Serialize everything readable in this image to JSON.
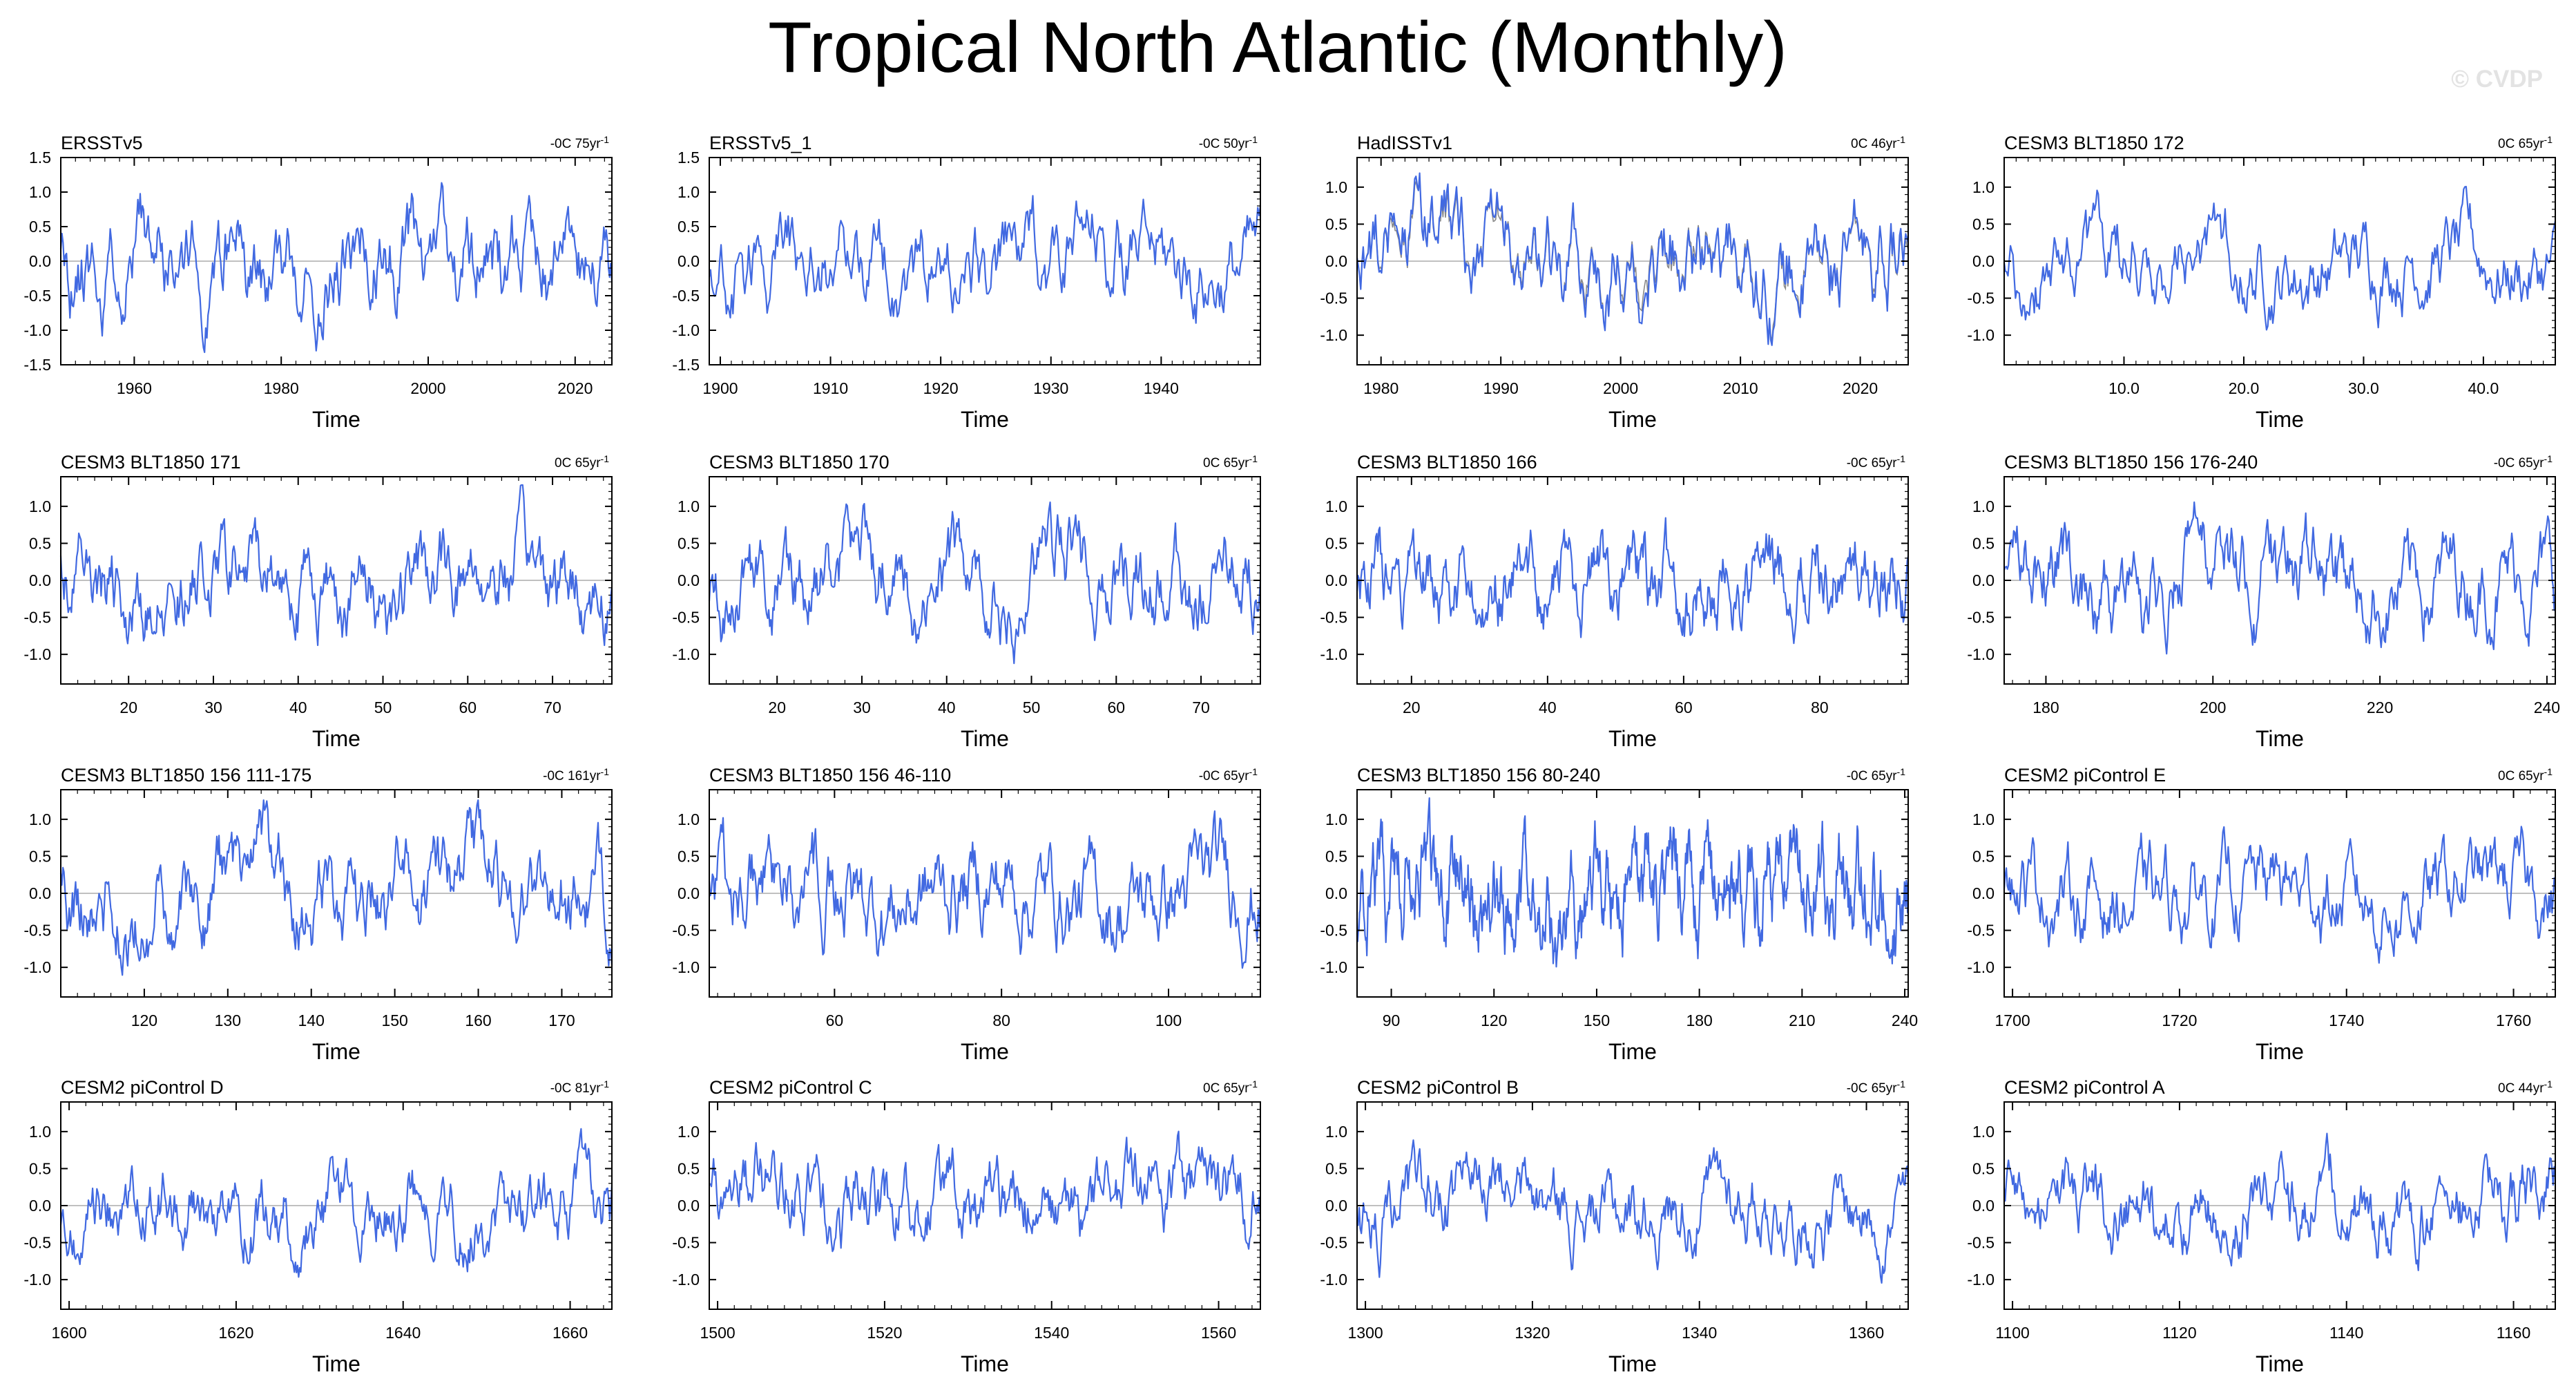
{
  "title": "Tropical North Atlantic (Monthly)",
  "watermark": "© CVDP",
  "colors": {
    "series": "#4169e1",
    "secondary": "#888888",
    "axis": "#000000",
    "zero_line": "#9a9a9a"
  },
  "chart_data": [
    {
      "type": "line",
      "title": "ERSSTv5",
      "trend": "-0C 75yr",
      "xlabel": "Time",
      "x_range": [
        1950,
        2025
      ],
      "x_ticks": [
        1960,
        1980,
        2000,
        2020
      ],
      "x_tick_labels": [
        "1960",
        "1980",
        "2000",
        "2020"
      ],
      "y_range": [
        -1.5,
        1.5
      ],
      "y_ticks": [
        -1.5,
        -1.0,
        -0.5,
        0.0,
        0.5,
        1.0,
        1.5
      ],
      "y_tick_labels": [
        "-1.5",
        "-1.0",
        "-0.5",
        "0.0",
        "0.5",
        "1.0",
        "1.5"
      ],
      "amplitude": 0.42,
      "seed": 11,
      "npts": 480
    },
    {
      "type": "line",
      "title": "ERSSTv5_1",
      "trend": "-0C 50yr",
      "xlabel": "Time",
      "x_range": [
        1899,
        1949
      ],
      "x_ticks": [
        1900,
        1910,
        1920,
        1930,
        1940
      ],
      "x_tick_labels": [
        "1900",
        "1910",
        "1920",
        "1930",
        "1940"
      ],
      "y_range": [
        -1.5,
        1.5
      ],
      "y_ticks": [
        -1.5,
        -1.0,
        -0.5,
        0.0,
        0.5,
        1.0,
        1.5
      ],
      "y_tick_labels": [
        "-1.5",
        "-1.0",
        "-0.5",
        "0.0",
        "0.5",
        "1.0",
        "1.5"
      ],
      "amplitude": 0.4,
      "seed": 23,
      "npts": 420
    },
    {
      "type": "line",
      "title": "HadISSTv1",
      "trend": "0C 46yr",
      "xlabel": "Time",
      "x_range": [
        1978,
        2024
      ],
      "x_ticks": [
        1980,
        1990,
        2000,
        2010,
        2020
      ],
      "x_tick_labels": [
        "1980",
        "1990",
        "2000",
        "2010",
        "2020"
      ],
      "y_range": [
        -1.4,
        1.4
      ],
      "y_ticks": [
        -1.0,
        -0.5,
        0.0,
        0.5,
        1.0
      ],
      "y_tick_labels": [
        "-1.0",
        "-0.5",
        "0.0",
        "0.5",
        "1.0"
      ],
      "amplitude": 0.4,
      "seed": 37,
      "npts": 450,
      "secondary_series": true
    },
    {
      "type": "line",
      "title": "CESM3 BLT1850 172",
      "trend": "0C 65yr",
      "xlabel": "Time",
      "x_range": [
        0,
        46
      ],
      "x_ticks": [
        10,
        20,
        30,
        40
      ],
      "x_tick_labels": [
        "10.0",
        "20.0",
        "30.0",
        "40.0"
      ],
      "y_range": [
        -1.4,
        1.4
      ],
      "y_ticks": [
        -1.0,
        -0.5,
        0.0,
        0.5,
        1.0
      ],
      "y_tick_labels": [
        "-1.0",
        "-0.5",
        "0.0",
        "0.5",
        "1.0"
      ],
      "amplitude": 0.33,
      "seed": 41,
      "npts": 440
    },
    {
      "type": "line",
      "title": "CESM3 BLT1850 171",
      "trend": "0C 65yr",
      "xlabel": "Time",
      "x_range": [
        12,
        77
      ],
      "x_ticks": [
        20,
        30,
        40,
        50,
        60,
        70
      ],
      "x_tick_labels": [
        "20",
        "30",
        "40",
        "50",
        "60",
        "70"
      ],
      "y_range": [
        -1.4,
        1.4
      ],
      "y_ticks": [
        -1.0,
        -0.5,
        0.0,
        0.5,
        1.0
      ],
      "y_tick_labels": [
        "-1.0",
        "-0.5",
        "0.0",
        "0.5",
        "1.0"
      ],
      "amplitude": 0.35,
      "seed": 53,
      "npts": 520
    },
    {
      "type": "line",
      "title": "CESM3 BLT1850 170",
      "trend": "0C 65yr",
      "xlabel": "Time",
      "x_range": [
        12,
        77
      ],
      "x_ticks": [
        20,
        30,
        40,
        50,
        60,
        70
      ],
      "x_tick_labels": [
        "20",
        "30",
        "40",
        "50",
        "60",
        "70"
      ],
      "y_range": [
        -1.4,
        1.4
      ],
      "y_ticks": [
        -1.0,
        -0.5,
        0.0,
        0.5,
        1.0
      ],
      "y_tick_labels": [
        "-1.0",
        "-0.5",
        "0.0",
        "0.5",
        "1.0"
      ],
      "amplitude": 0.36,
      "seed": 67,
      "npts": 520
    },
    {
      "type": "line",
      "title": "CESM3 BLT1850 166",
      "trend": "-0C 65yr",
      "xlabel": "Time",
      "x_range": [
        12,
        93
      ],
      "x_ticks": [
        20,
        40,
        60,
        80
      ],
      "x_tick_labels": [
        "20",
        "40",
        "60",
        "80"
      ],
      "y_range": [
        -1.4,
        1.4
      ],
      "y_ticks": [
        -1.0,
        -0.5,
        0.0,
        0.5,
        1.0
      ],
      "y_tick_labels": [
        "-1.0",
        "-0.5",
        "0.0",
        "0.5",
        "1.0"
      ],
      "amplitude": 0.36,
      "seed": 71,
      "npts": 560
    },
    {
      "type": "line",
      "title": "CESM3 BLT1850 156 176-240",
      "trend": "-0C 65yr",
      "xlabel": "Time",
      "x_range": [
        175,
        241
      ],
      "x_ticks": [
        180,
        200,
        220,
        240
      ],
      "x_tick_labels": [
        "180",
        "200",
        "220",
        "240"
      ],
      "y_range": [
        -1.4,
        1.4
      ],
      "y_ticks": [
        -1.0,
        -0.5,
        0.0,
        0.5,
        1.0
      ],
      "y_tick_labels": [
        "-1.0",
        "-0.5",
        "0.0",
        "0.5",
        "1.0"
      ],
      "amplitude": 0.36,
      "seed": 83,
      "npts": 520
    },
    {
      "type": "line",
      "title": "CESM3 BLT1850 156 111-175",
      "trend": "-0C 161yr",
      "xlabel": "Time",
      "x_range": [
        110,
        176
      ],
      "x_ticks": [
        120,
        130,
        140,
        150,
        160,
        170
      ],
      "x_tick_labels": [
        "120",
        "130",
        "140",
        "150",
        "160",
        "170"
      ],
      "y_range": [
        -1.4,
        1.4
      ],
      "y_ticks": [
        -1.0,
        -0.5,
        0.0,
        0.5,
        1.0
      ],
      "y_tick_labels": [
        "-1.0",
        "-0.5",
        "0.0",
        "0.5",
        "1.0"
      ],
      "amplitude": 0.36,
      "seed": 97,
      "npts": 520
    },
    {
      "type": "line",
      "title": "CESM3 BLT1850 156 46-110",
      "trend": "-0C 65yr",
      "xlabel": "Time",
      "x_range": [
        45,
        111
      ],
      "x_ticks": [
        60,
        80,
        100
      ],
      "x_tick_labels": [
        "60",
        "80",
        "100"
      ],
      "y_range": [
        -1.4,
        1.4
      ],
      "y_ticks": [
        -1.0,
        -0.5,
        0.0,
        0.5,
        1.0
      ],
      "y_tick_labels": [
        "-1.0",
        "-0.5",
        "0.0",
        "0.5",
        "1.0"
      ],
      "amplitude": 0.38,
      "seed": 101,
      "npts": 520
    },
    {
      "type": "line",
      "title": "CESM3 BLT1850 156 80-240",
      "trend": "-0C 65yr",
      "xlabel": "Time",
      "x_range": [
        80,
        241
      ],
      "x_ticks": [
        90,
        120,
        150,
        180,
        210,
        240
      ],
      "x_tick_labels": [
        "90",
        "120",
        "150",
        "180",
        "210",
        "240"
      ],
      "y_range": [
        -1.4,
        1.4
      ],
      "y_ticks": [
        -1.0,
        -0.5,
        0.0,
        0.5,
        1.0
      ],
      "y_tick_labels": [
        "-1.0",
        "-0.5",
        "0.0",
        "0.5",
        "1.0"
      ],
      "amplitude": 0.4,
      "seed": 113,
      "npts": 900
    },
    {
      "type": "line",
      "title": "CESM2 piControl E",
      "trend": "0C 65yr",
      "xlabel": "Time",
      "x_range": [
        1699,
        1765
      ],
      "x_ticks": [
        1700,
        1720,
        1740,
        1760
      ],
      "x_tick_labels": [
        "1700",
        "1720",
        "1740",
        "1760"
      ],
      "y_range": [
        -1.4,
        1.4
      ],
      "y_ticks": [
        -1.0,
        -0.5,
        0.0,
        0.5,
        1.0
      ],
      "y_tick_labels": [
        "-1.0",
        "-0.5",
        "0.0",
        "0.5",
        "1.0"
      ],
      "amplitude": 0.33,
      "seed": 127,
      "npts": 520
    },
    {
      "type": "line",
      "title": "CESM2 piControl D",
      "trend": "-0C 81yr",
      "xlabel": "Time",
      "x_range": [
        1599,
        1665
      ],
      "x_ticks": [
        1600,
        1620,
        1640,
        1660
      ],
      "x_tick_labels": [
        "1600",
        "1620",
        "1640",
        "1660"
      ],
      "y_range": [
        -1.4,
        1.4
      ],
      "y_ticks": [
        -1.0,
        -0.5,
        0.0,
        0.5,
        1.0
      ],
      "y_tick_labels": [
        "-1.0",
        "-0.5",
        "0.0",
        "0.5",
        "1.0"
      ],
      "amplitude": 0.3,
      "seed": 131,
      "npts": 520
    },
    {
      "type": "line",
      "title": "CESM2 piControl C",
      "trend": "0C 65yr",
      "xlabel": "Time",
      "x_range": [
        1499,
        1565
      ],
      "x_ticks": [
        1500,
        1520,
        1540,
        1560
      ],
      "x_tick_labels": [
        "1500",
        "1520",
        "1540",
        "1560"
      ],
      "y_range": [
        -1.4,
        1.4
      ],
      "y_ticks": [
        -1.0,
        -0.5,
        0.0,
        0.5,
        1.0
      ],
      "y_tick_labels": [
        "-1.0",
        "-0.5",
        "0.0",
        "0.5",
        "1.0"
      ],
      "amplitude": 0.33,
      "seed": 139,
      "npts": 520
    },
    {
      "type": "line",
      "title": "CESM2 piControl B",
      "trend": "-0C 65yr",
      "xlabel": "Time",
      "x_range": [
        1299,
        1365
      ],
      "x_ticks": [
        1300,
        1320,
        1340,
        1360
      ],
      "x_tick_labels": [
        "1300",
        "1320",
        "1340",
        "1360"
      ],
      "y_range": [
        -1.4,
        1.4
      ],
      "y_ticks": [
        -1.0,
        -0.5,
        0.0,
        0.5,
        1.0
      ],
      "y_tick_labels": [
        "-1.0",
        "-0.5",
        "0.0",
        "0.5",
        "1.0"
      ],
      "amplitude": 0.3,
      "seed": 149,
      "npts": 520
    },
    {
      "type": "line",
      "title": "CESM2 piControl A",
      "trend": "0C 44yr",
      "xlabel": "Time",
      "x_range": [
        1099,
        1165
      ],
      "x_ticks": [
        1100,
        1120,
        1140,
        1160
      ],
      "x_tick_labels": [
        "1100",
        "1120",
        "1140",
        "1160"
      ],
      "y_range": [
        -1.4,
        1.4
      ],
      "y_ticks": [
        -1.0,
        -0.5,
        0.0,
        0.5,
        1.0
      ],
      "y_tick_labels": [
        "-1.0",
        "-0.5",
        "0.0",
        "0.5",
        "1.0"
      ],
      "amplitude": 0.3,
      "seed": 157,
      "npts": 520
    }
  ]
}
